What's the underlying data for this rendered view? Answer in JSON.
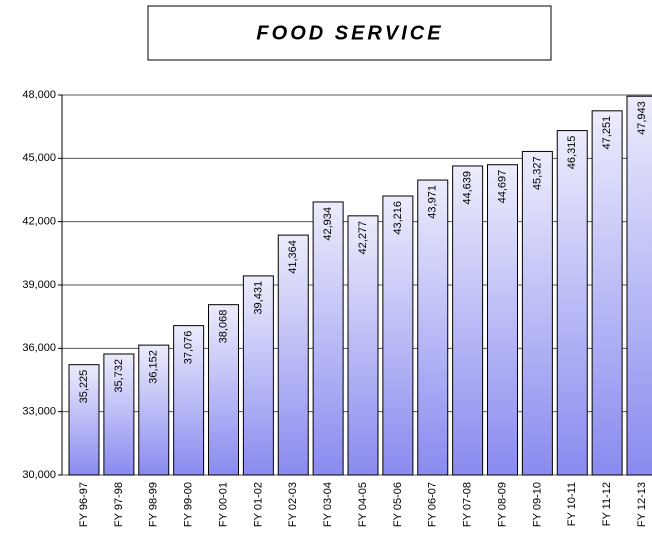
{
  "chart_data": {
    "type": "bar",
    "title": "FOOD SERVICE",
    "categories": [
      "FY 96-97",
      "FY 97-98",
      "FY 98-99",
      "FY 99-00",
      "FY 00-01",
      "FY 01-02",
      "FY 02-03",
      "FY 03-04",
      "FY 04-05",
      "FY 05-06",
      "FY 06-07",
      "FY 07-08",
      "FY 08-09",
      "FY 09-10",
      "FY 10-11",
      "FY 11-12",
      "FY 12-13"
    ],
    "values": [
      35225,
      35732,
      36152,
      37076,
      38068,
      39431,
      41364,
      42934,
      42277,
      43216,
      43971,
      44639,
      44697,
      45327,
      46315,
      47251,
      47943
    ],
    "value_labels": [
      "35,225",
      "35,732",
      "36,152",
      "37,076",
      "38,068",
      "39,431",
      "41,364",
      "42,934",
      "42,277",
      "43,216",
      "43,971",
      "44,639",
      "44,697",
      "45,327",
      "46,315",
      "47,251",
      "47,943"
    ],
    "color": "#8a8af0",
    "ylim": [
      30000,
      48000
    ],
    "yticks": [
      {
        "value": 30000,
        "label": "30,000"
      },
      {
        "value": 33000,
        "label": "33,000"
      },
      {
        "value": 36000,
        "label": "36,000"
      },
      {
        "value": 39000,
        "label": "39,000"
      },
      {
        "value": 42000,
        "label": "42,000"
      },
      {
        "value": 45000,
        "label": "45,000"
      },
      {
        "value": 48000,
        "label": "48,000"
      }
    ],
    "grid": true
  }
}
